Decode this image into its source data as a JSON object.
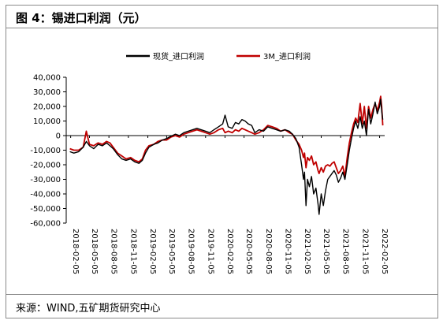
{
  "header": {
    "title": "图 4：锡进口利润（元）"
  },
  "footer": {
    "source": "来源：WIND,五矿期货研究中心"
  },
  "chart_data": {
    "type": "line",
    "title": "",
    "xlabel": "",
    "ylabel": "",
    "ylim": [
      -60000,
      40000
    ],
    "yticks": [
      40000,
      30000,
      20000,
      10000,
      0,
      -10000,
      -20000,
      -30000,
      -40000,
      -50000,
      -60000
    ],
    "ytick_labels": [
      "40,000",
      "30,000",
      "20,000",
      "10,000",
      "0",
      "-10,000",
      "-20,000",
      "-30,000",
      "-40,000",
      "-50,000",
      "-60,000"
    ],
    "xlim": [
      "2018-01-15",
      "2022-03-01"
    ],
    "xticks": [
      "2018-02-05",
      "2018-05-05",
      "2018-08-05",
      "2018-11-05",
      "2019-02-05",
      "2019-05-05",
      "2019-08-05",
      "2019-11-05",
      "2020-02-05",
      "2020-05-05",
      "2020-08-05",
      "2020-11-05",
      "2021-02-05",
      "2021-05-05",
      "2021-08-05",
      "2021-11-05",
      "2022-02-05"
    ],
    "grid": false,
    "legend_position": "top",
    "series": [
      {
        "name": "现货_进口利润",
        "color": "#000000",
        "points": [
          [
            "2018-02-01",
            -11000
          ],
          [
            "2018-02-20",
            -12000
          ],
          [
            "2018-03-15",
            -11000
          ],
          [
            "2018-04-05",
            -8000
          ],
          [
            "2018-04-20",
            -4000
          ],
          [
            "2018-05-05",
            -7000
          ],
          [
            "2018-05-25",
            -9000
          ],
          [
            "2018-06-15",
            -6000
          ],
          [
            "2018-07-05",
            -7000
          ],
          [
            "2018-07-25",
            -5000
          ],
          [
            "2018-08-10",
            -7000
          ],
          [
            "2018-08-25",
            -9000
          ],
          [
            "2018-09-15",
            -13000
          ],
          [
            "2018-10-05",
            -16000
          ],
          [
            "2018-10-25",
            -17000
          ],
          [
            "2018-11-15",
            -16000
          ],
          [
            "2018-12-05",
            -18000
          ],
          [
            "2018-12-25",
            -19000
          ],
          [
            "2019-01-10",
            -17000
          ],
          [
            "2019-01-25",
            -12000
          ],
          [
            "2019-02-10",
            -8000
          ],
          [
            "2019-03-05",
            -6000
          ],
          [
            "2019-03-25",
            -5000
          ],
          [
            "2019-04-15",
            -3000
          ],
          [
            "2019-05-05",
            -2000
          ],
          [
            "2019-05-25",
            -500
          ],
          [
            "2019-06-15",
            1000
          ],
          [
            "2019-07-05",
            0
          ],
          [
            "2019-07-25",
            2000
          ],
          [
            "2019-08-15",
            3000
          ],
          [
            "2019-09-05",
            4000
          ],
          [
            "2019-09-25",
            5000
          ],
          [
            "2019-10-15",
            4000
          ],
          [
            "2019-11-05",
            3000
          ],
          [
            "2019-11-25",
            2000
          ],
          [
            "2019-12-15",
            4000
          ],
          [
            "2020-01-05",
            6000
          ],
          [
            "2020-01-25",
            8000
          ],
          [
            "2020-02-05",
            14000
          ],
          [
            "2020-02-20",
            6000
          ],
          [
            "2020-03-10",
            5000
          ],
          [
            "2020-03-25",
            9000
          ],
          [
            "2020-04-10",
            8000
          ],
          [
            "2020-04-25",
            11000
          ],
          [
            "2020-05-10",
            10000
          ],
          [
            "2020-05-25",
            8000
          ],
          [
            "2020-06-10",
            7000
          ],
          [
            "2020-06-25",
            2000
          ],
          [
            "2020-07-15",
            4000
          ],
          [
            "2020-08-05",
            3000
          ],
          [
            "2020-08-25",
            6000
          ],
          [
            "2020-09-15",
            5000
          ],
          [
            "2020-10-05",
            4000
          ],
          [
            "2020-10-25",
            3000
          ],
          [
            "2020-11-15",
            4000
          ],
          [
            "2020-12-05",
            3000
          ],
          [
            "2020-12-20",
            1000
          ],
          [
            "2021-01-05",
            -2000
          ],
          [
            "2021-01-20",
            -8000
          ],
          [
            "2021-02-01",
            -20000
          ],
          [
            "2021-02-10",
            -30000
          ],
          [
            "2021-02-15",
            -25000
          ],
          [
            "2021-02-22",
            -48000
          ],
          [
            "2021-03-01",
            -30000
          ],
          [
            "2021-03-10",
            -35000
          ],
          [
            "2021-03-20",
            -28000
          ],
          [
            "2021-03-30",
            -40000
          ],
          [
            "2021-04-10",
            -36000
          ],
          [
            "2021-04-20",
            -47000
          ],
          [
            "2021-04-25",
            -54000
          ],
          [
            "2021-05-05",
            -40000
          ],
          [
            "2021-05-15",
            -48000
          ],
          [
            "2021-05-25",
            -38000
          ],
          [
            "2021-06-05",
            -30000
          ],
          [
            "2021-06-15",
            -28000
          ],
          [
            "2021-06-25",
            -26000
          ],
          [
            "2021-07-05",
            -24000
          ],
          [
            "2021-07-15",
            -27000
          ],
          [
            "2021-07-25",
            -32000
          ],
          [
            "2021-08-05",
            -29000
          ],
          [
            "2021-08-15",
            -25000
          ],
          [
            "2021-08-25",
            -30000
          ],
          [
            "2021-09-05",
            -20000
          ],
          [
            "2021-09-15",
            -10000
          ],
          [
            "2021-09-25",
            -2000
          ],
          [
            "2021-10-05",
            5000
          ],
          [
            "2021-10-15",
            10000
          ],
          [
            "2021-10-25",
            5000
          ],
          [
            "2021-11-05",
            13000
          ],
          [
            "2021-11-15",
            5000
          ],
          [
            "2021-11-25",
            10000
          ],
          [
            "2021-12-05",
            0
          ],
          [
            "2021-12-15",
            18000
          ],
          [
            "2021-12-25",
            8000
          ],
          [
            "2022-01-05",
            15000
          ],
          [
            "2022-01-15",
            23000
          ],
          [
            "2022-01-25",
            15000
          ],
          [
            "2022-02-05",
            20000
          ],
          [
            "2022-02-10",
            25000
          ],
          [
            "2022-02-15",
            17000
          ],
          [
            "2022-02-20",
            11000
          ]
        ]
      },
      {
        "name": "3M_进口利润",
        "color": "#c00000",
        "points": [
          [
            "2018-02-01",
            -9000
          ],
          [
            "2018-02-20",
            -10000
          ],
          [
            "2018-03-15",
            -10000
          ],
          [
            "2018-04-05",
            -8000
          ],
          [
            "2018-04-20",
            3000
          ],
          [
            "2018-05-05",
            -6000
          ],
          [
            "2018-05-25",
            -7000
          ],
          [
            "2018-06-15",
            -5000
          ],
          [
            "2018-07-05",
            -6000
          ],
          [
            "2018-07-25",
            -4000
          ],
          [
            "2018-08-10",
            -5000
          ],
          [
            "2018-08-25",
            -8000
          ],
          [
            "2018-09-15",
            -12000
          ],
          [
            "2018-10-05",
            -14000
          ],
          [
            "2018-10-25",
            -16000
          ],
          [
            "2018-11-15",
            -15000
          ],
          [
            "2018-12-05",
            -17000
          ],
          [
            "2018-12-25",
            -18000
          ],
          [
            "2019-01-10",
            -16000
          ],
          [
            "2019-01-25",
            -10000
          ],
          [
            "2019-02-10",
            -7000
          ],
          [
            "2019-03-05",
            -6000
          ],
          [
            "2019-03-25",
            -4000
          ],
          [
            "2019-04-15",
            -3000
          ],
          [
            "2019-05-05",
            -3000
          ],
          [
            "2019-05-25",
            -1000
          ],
          [
            "2019-06-15",
            0
          ],
          [
            "2019-07-05",
            -1000
          ],
          [
            "2019-07-25",
            1000
          ],
          [
            "2019-08-15",
            2000
          ],
          [
            "2019-09-05",
            3000
          ],
          [
            "2019-09-25",
            4000
          ],
          [
            "2019-10-15",
            3000
          ],
          [
            "2019-11-05",
            2000
          ],
          [
            "2019-11-25",
            1000
          ],
          [
            "2019-12-15",
            2000
          ],
          [
            "2020-01-05",
            4000
          ],
          [
            "2020-01-25",
            5000
          ],
          [
            "2020-02-05",
            2000
          ],
          [
            "2020-02-20",
            3000
          ],
          [
            "2020-03-10",
            2000
          ],
          [
            "2020-03-25",
            4000
          ],
          [
            "2020-04-10",
            3000
          ],
          [
            "2020-04-25",
            5000
          ],
          [
            "2020-05-10",
            4000
          ],
          [
            "2020-05-25",
            3000
          ],
          [
            "2020-06-10",
            2000
          ],
          [
            "2020-06-25",
            1000
          ],
          [
            "2020-07-15",
            2000
          ],
          [
            "2020-08-05",
            4000
          ],
          [
            "2020-08-25",
            7000
          ],
          [
            "2020-09-15",
            6000
          ],
          [
            "2020-10-05",
            5000
          ],
          [
            "2020-10-25",
            3000
          ],
          [
            "2020-11-15",
            4000
          ],
          [
            "2020-12-05",
            2000
          ],
          [
            "2020-12-20",
            1000
          ],
          [
            "2021-01-05",
            -3000
          ],
          [
            "2021-01-20",
            -6000
          ],
          [
            "2021-02-01",
            -10000
          ],
          [
            "2021-02-10",
            -15000
          ],
          [
            "2021-02-15",
            -12000
          ],
          [
            "2021-02-22",
            -22000
          ],
          [
            "2021-03-01",
            -15000
          ],
          [
            "2021-03-10",
            -17000
          ],
          [
            "2021-03-20",
            -14000
          ],
          [
            "2021-03-30",
            -20000
          ],
          [
            "2021-04-10",
            -18000
          ],
          [
            "2021-04-20",
            -24000
          ],
          [
            "2021-04-25",
            -26000
          ],
          [
            "2021-05-05",
            -22000
          ],
          [
            "2021-05-15",
            -25000
          ],
          [
            "2021-05-25",
            -21000
          ],
          [
            "2021-06-05",
            -20000
          ],
          [
            "2021-06-15",
            -21000
          ],
          [
            "2021-06-25",
            -19000
          ],
          [
            "2021-07-05",
            -18000
          ],
          [
            "2021-07-15",
            -22000
          ],
          [
            "2021-07-25",
            -26000
          ],
          [
            "2021-08-05",
            -24000
          ],
          [
            "2021-08-15",
            -21000
          ],
          [
            "2021-08-25",
            -28000
          ],
          [
            "2021-09-05",
            -15000
          ],
          [
            "2021-09-15",
            -5000
          ],
          [
            "2021-09-25",
            2000
          ],
          [
            "2021-10-05",
            8000
          ],
          [
            "2021-10-15",
            12000
          ],
          [
            "2021-10-25",
            9000
          ],
          [
            "2021-11-05",
            22000
          ],
          [
            "2021-11-15",
            8000
          ],
          [
            "2021-11-25",
            20000
          ],
          [
            "2021-12-05",
            5000
          ],
          [
            "2021-12-15",
            20000
          ],
          [
            "2021-12-25",
            12000
          ],
          [
            "2022-01-05",
            18000
          ],
          [
            "2022-01-15",
            22000
          ],
          [
            "2022-01-25",
            17000
          ],
          [
            "2022-02-05",
            23000
          ],
          [
            "2022-02-10",
            27000
          ],
          [
            "2022-02-15",
            20000
          ],
          [
            "2022-02-20",
            7000
          ]
        ]
      }
    ]
  }
}
